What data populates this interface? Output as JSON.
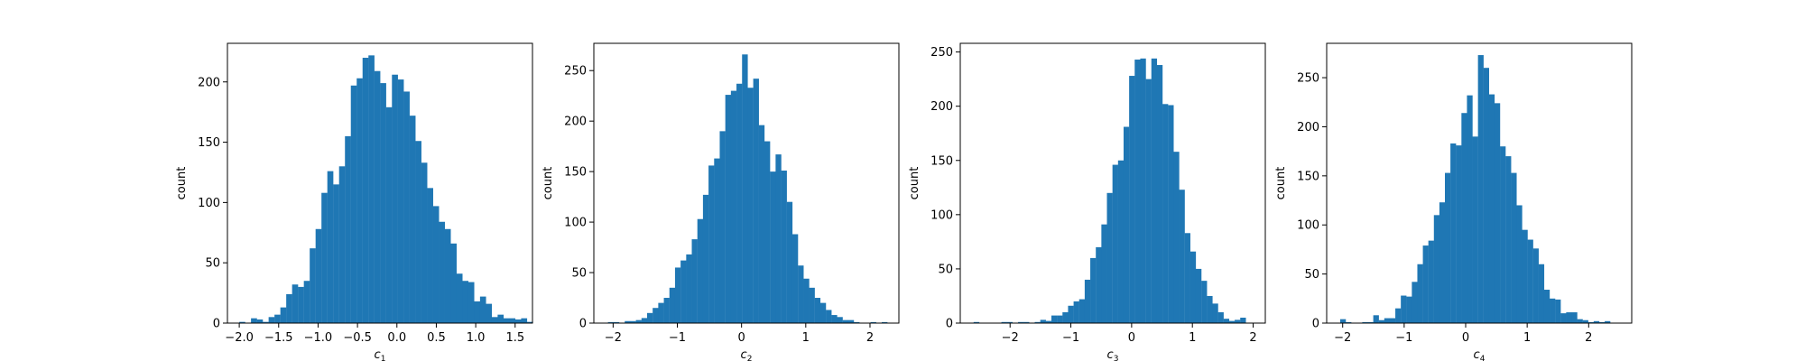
{
  "chart_data": [
    {
      "type": "bar",
      "histogram": true,
      "xlabel_var": "c",
      "xlabel_sub": "1",
      "ylabel": "count",
      "xlim": [
        -2.15,
        1.72
      ],
      "ylim": [
        0,
        232
      ],
      "xticks": [
        -2.0,
        -1.5,
        -1.0,
        -0.5,
        0.0,
        0.5,
        1.0,
        1.5
      ],
      "xtick_labels": [
        "−2.0",
        "−1.5",
        "−1.0",
        "−0.5",
        "0.0",
        "0.5",
        "1.0",
        "1.5"
      ],
      "yticks": [
        0,
        50,
        100,
        150,
        200
      ],
      "ytick_labels": [
        "0",
        "50",
        "100",
        "150",
        "200"
      ],
      "bin_start": -2.0,
      "bin_width": 0.0745,
      "values": [
        1,
        0,
        4,
        3,
        1,
        5,
        7,
        13,
        24,
        32,
        30,
        35,
        62,
        78,
        108,
        126,
        115,
        130,
        155,
        197,
        203,
        220,
        222,
        209,
        199,
        179,
        206,
        202,
        192,
        172,
        151,
        133,
        112,
        97,
        84,
        78,
        66,
        41,
        35,
        34,
        18,
        22,
        16,
        5,
        7,
        4,
        4,
        3,
        4,
        1
      ]
    },
    {
      "type": "bar",
      "histogram": true,
      "xlabel_var": "c",
      "xlabel_sub": "2",
      "ylabel": "count",
      "xlim": [
        -2.3,
        2.45
      ],
      "ylim": [
        0,
        277
      ],
      "xticks": [
        -2,
        -1,
        0,
        1,
        2
      ],
      "xtick_labels": [
        "−2",
        "−1",
        "0",
        "1",
        "2"
      ],
      "yticks": [
        0,
        50,
        100,
        150,
        200,
        250
      ],
      "ytick_labels": [
        "0",
        "50",
        "100",
        "150",
        "200",
        "250"
      ],
      "bin_start": -2.08,
      "bin_width": 0.087,
      "values": [
        1,
        1,
        0,
        2,
        2,
        3,
        5,
        10,
        15,
        20,
        25,
        35,
        55,
        62,
        68,
        83,
        103,
        127,
        156,
        163,
        190,
        226,
        230,
        237,
        266,
        233,
        242,
        196,
        180,
        150,
        167,
        151,
        120,
        88,
        57,
        44,
        35,
        25,
        20,
        13,
        8,
        6,
        3,
        3,
        1,
        0,
        0,
        1,
        0,
        1
      ]
    },
    {
      "type": "bar",
      "histogram": true,
      "xlabel_var": "c",
      "xlabel_sub": "3",
      "ylabel": "count",
      "xlim": [
        -2.82,
        2.2
      ],
      "ylim": [
        0,
        258
      ],
      "xticks": [
        -2,
        -1,
        0,
        1,
        2
      ],
      "xtick_labels": [
        "−2",
        "−1",
        "0",
        "1",
        "2"
      ],
      "yticks": [
        0,
        50,
        100,
        150,
        200,
        250
      ],
      "ytick_labels": [
        "0",
        "50",
        "100",
        "150",
        "200",
        "250"
      ],
      "bin_start": -2.6,
      "bin_width": 0.0914,
      "values": [
        1,
        0,
        0,
        0,
        0,
        1,
        1,
        0,
        1,
        1,
        0,
        1,
        3,
        2,
        7,
        7,
        10,
        16,
        20,
        22,
        40,
        60,
        70,
        91,
        120,
        146,
        150,
        181,
        228,
        243,
        244,
        225,
        244,
        238,
        202,
        201,
        158,
        123,
        83,
        66,
        50,
        39,
        25,
        18,
        10,
        4,
        2,
        3,
        5,
        0
      ]
    },
    {
      "type": "bar",
      "histogram": true,
      "xlabel_var": "c",
      "xlabel_sub": "4",
      "ylabel": "count",
      "xlim": [
        -2.26,
        2.7
      ],
      "ylim": [
        0,
        285
      ],
      "xticks": [
        -2,
        -1,
        0,
        1,
        2
      ],
      "xtick_labels": [
        "−2",
        "−1",
        "0",
        "1",
        "2"
      ],
      "yticks": [
        0,
        50,
        100,
        150,
        200,
        250
      ],
      "ytick_labels": [
        "0",
        "50",
        "100",
        "150",
        "200",
        "250"
      ],
      "bin_start": -2.04,
      "bin_width": 0.0896,
      "values": [
        4,
        1,
        0,
        0,
        1,
        1,
        8,
        3,
        5,
        5,
        15,
        28,
        27,
        42,
        60,
        79,
        84,
        110,
        123,
        153,
        183,
        181,
        214,
        232,
        190,
        273,
        260,
        233,
        224,
        180,
        170,
        153,
        120,
        95,
        85,
        76,
        60,
        34,
        25,
        24,
        10,
        11,
        11,
        4,
        3,
        1,
        2,
        1,
        2,
        0
      ]
    }
  ]
}
